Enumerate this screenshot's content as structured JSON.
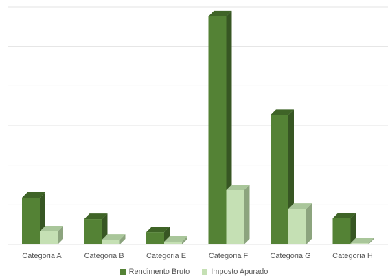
{
  "chart_data": {
    "type": "bar",
    "categories": [
      "Categoria A",
      "Categoria B",
      "Categoria E",
      "Categoria F",
      "Categoria G",
      "Categoria H"
    ],
    "series": [
      {
        "name": "Rendimento Bruto",
        "values": [
          11.8,
          6.4,
          3.1,
          57.6,
          32.7,
          6.6
        ],
        "color": "#548235",
        "color_side": "#375623",
        "color_top": "#3f6427"
      },
      {
        "name": "Imposto Apurado",
        "values": [
          3.3,
          1.2,
          0.7,
          13.7,
          9.0,
          0.3
        ],
        "color": "#c5e0b4",
        "color_side": "#8ca47e",
        "color_top": "#a9c69a"
      }
    ],
    "ylim": [
      0,
      60
    ],
    "grid": true,
    "legend_position": "bottom",
    "title": "",
    "xlabel": "",
    "ylabel": ""
  }
}
